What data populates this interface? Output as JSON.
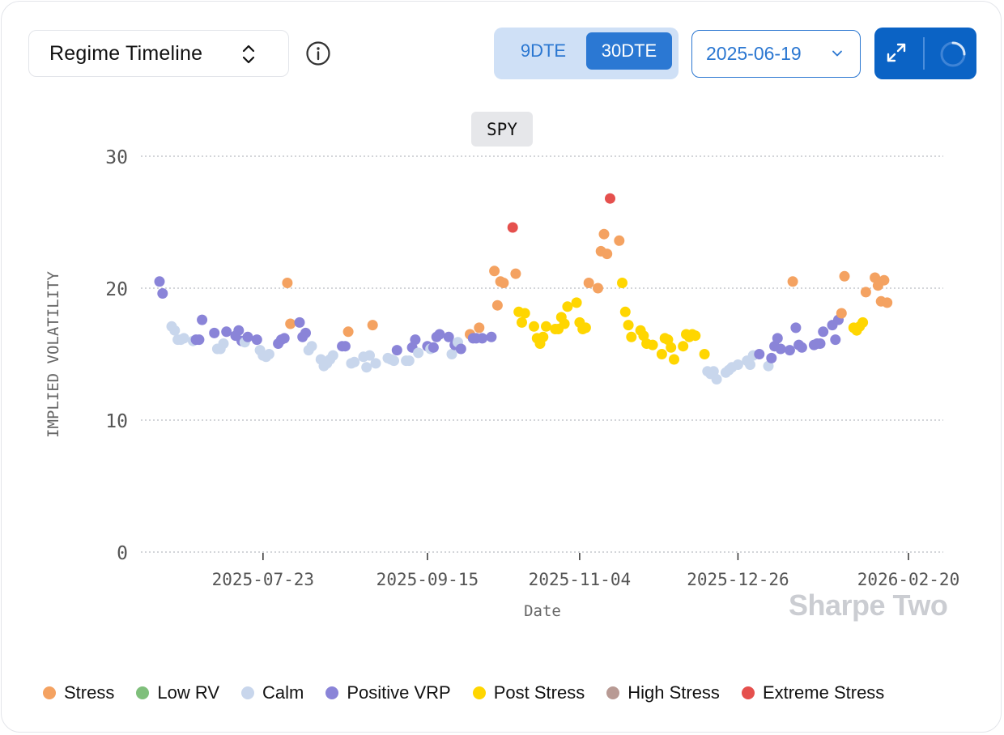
{
  "header": {
    "view_selector": "Regime Timeline",
    "dte_options": [
      "9DTE",
      "30DTE"
    ],
    "dte_selected": "30DTE",
    "date": "2025-06-19"
  },
  "watermark": "Sharpe Two",
  "colors": {
    "Stress": "#f4a261",
    "Low RV": "#7fbf7b",
    "Calm": "#c8d6ec",
    "Positive VRP": "#8a84d8",
    "Post Stress": "#ffd600",
    "High Stress": "#b89a94",
    "Extreme Stress": "#e5504d"
  },
  "legend": [
    "Stress",
    "Low RV",
    "Calm",
    "Positive VRP",
    "Post Stress",
    "High Stress",
    "Extreme Stress"
  ],
  "chart_data": {
    "type": "scatter",
    "title": "SPY",
    "xlabel": "Date",
    "ylabel": "IMPLIED VOLATILITY",
    "ylim": [
      0,
      30
    ],
    "xlim": [
      "2025-06-19",
      "2026-02-20"
    ],
    "yticks": [
      0,
      10,
      20,
      30
    ],
    "xticks": [
      "2025-07-23",
      "2025-09-15",
      "2025-11-04",
      "2025-12-26",
      "2026-02-20"
    ],
    "grid": true,
    "legend_position": "bottom",
    "points": [
      [
        "2025-06-19",
        20.5,
        "Positive VRP"
      ],
      [
        "2025-06-20",
        19.6,
        "Positive VRP"
      ],
      [
        "2025-06-23",
        17.1,
        "Calm"
      ],
      [
        "2025-06-24",
        16.8,
        "Calm"
      ],
      [
        "2025-06-25",
        16.1,
        "Calm"
      ],
      [
        "2025-06-26",
        16.1,
        "Calm"
      ],
      [
        "2025-06-27",
        16.2,
        "Calm"
      ],
      [
        "2025-06-30",
        16.0,
        "Calm"
      ],
      [
        "2025-07-01",
        16.1,
        "Positive VRP"
      ],
      [
        "2025-07-02",
        16.1,
        "Positive VRP"
      ],
      [
        "2025-07-03",
        17.6,
        "Positive VRP"
      ],
      [
        "2025-07-07",
        16.6,
        "Positive VRP"
      ],
      [
        "2025-07-08",
        15.4,
        "Calm"
      ],
      [
        "2025-07-09",
        15.4,
        "Calm"
      ],
      [
        "2025-07-10",
        15.8,
        "Calm"
      ],
      [
        "2025-07-11",
        16.7,
        "Positive VRP"
      ],
      [
        "2025-07-14",
        16.4,
        "Positive VRP"
      ],
      [
        "2025-07-15",
        16.8,
        "Positive VRP"
      ],
      [
        "2025-07-16",
        16.0,
        "Positive VRP"
      ],
      [
        "2025-07-17",
        15.9,
        "Calm"
      ],
      [
        "2025-07-18",
        16.3,
        "Positive VRP"
      ],
      [
        "2025-07-21",
        16.1,
        "Positive VRP"
      ],
      [
        "2025-07-22",
        15.3,
        "Calm"
      ],
      [
        "2025-07-23",
        14.9,
        "Calm"
      ],
      [
        "2025-07-24",
        14.8,
        "Calm"
      ],
      [
        "2025-07-25",
        15.0,
        "Calm"
      ],
      [
        "2025-07-28",
        15.8,
        "Positive VRP"
      ],
      [
        "2025-07-29",
        16.1,
        "Positive VRP"
      ],
      [
        "2025-07-30",
        16.2,
        "Positive VRP"
      ],
      [
        "2025-07-31",
        20.4,
        "Stress"
      ],
      [
        "2025-08-01",
        17.3,
        "Stress"
      ],
      [
        "2025-08-04",
        17.4,
        "Positive VRP"
      ],
      [
        "2025-08-05",
        16.3,
        "Positive VRP"
      ],
      [
        "2025-08-06",
        16.6,
        "Positive VRP"
      ],
      [
        "2025-08-07",
        15.3,
        "Calm"
      ],
      [
        "2025-08-08",
        15.6,
        "Calm"
      ],
      [
        "2025-08-11",
        14.6,
        "Calm"
      ],
      [
        "2025-08-12",
        14.1,
        "Calm"
      ],
      [
        "2025-08-13",
        14.3,
        "Calm"
      ],
      [
        "2025-08-14",
        14.6,
        "Calm"
      ],
      [
        "2025-08-15",
        14.9,
        "Calm"
      ],
      [
        "2025-08-18",
        15.6,
        "Positive VRP"
      ],
      [
        "2025-08-19",
        15.6,
        "Positive VRP"
      ],
      [
        "2025-08-20",
        16.7,
        "Stress"
      ],
      [
        "2025-08-21",
        14.3,
        "Calm"
      ],
      [
        "2025-08-22",
        14.4,
        "Calm"
      ],
      [
        "2025-08-25",
        14.8,
        "Calm"
      ],
      [
        "2025-08-26",
        14.0,
        "Calm"
      ],
      [
        "2025-08-27",
        14.9,
        "Calm"
      ],
      [
        "2025-08-28",
        17.2,
        "Stress"
      ],
      [
        "2025-08-29",
        14.3,
        "Calm"
      ],
      [
        "2025-09-02",
        14.7,
        "Calm"
      ],
      [
        "2025-09-03",
        14.6,
        "Calm"
      ],
      [
        "2025-09-04",
        14.5,
        "Calm"
      ],
      [
        "2025-09-05",
        15.3,
        "Positive VRP"
      ],
      [
        "2025-09-08",
        14.5,
        "Calm"
      ],
      [
        "2025-09-09",
        14.5,
        "Calm"
      ],
      [
        "2025-09-10",
        15.5,
        "Positive VRP"
      ],
      [
        "2025-09-11",
        16.1,
        "Positive VRP"
      ],
      [
        "2025-09-12",
        15.1,
        "Calm"
      ],
      [
        "2025-09-15",
        15.6,
        "Positive VRP"
      ],
      [
        "2025-09-16",
        15.4,
        "Calm"
      ],
      [
        "2025-09-17",
        15.5,
        "Positive VRP"
      ],
      [
        "2025-09-18",
        16.3,
        "Positive VRP"
      ],
      [
        "2025-09-19",
        16.5,
        "Positive VRP"
      ],
      [
        "2025-09-22",
        16.3,
        "Positive VRP"
      ],
      [
        "2025-09-23",
        15.0,
        "Calm"
      ],
      [
        "2025-09-24",
        15.7,
        "Positive VRP"
      ],
      [
        "2025-09-25",
        15.9,
        "Calm"
      ],
      [
        "2025-09-26",
        15.4,
        "Positive VRP"
      ],
      [
        "2025-09-29",
        16.5,
        "Stress"
      ],
      [
        "2025-09-30",
        16.2,
        "Positive VRP"
      ],
      [
        "2025-10-01",
        16.2,
        "Positive VRP"
      ],
      [
        "2025-10-02",
        17.0,
        "Stress"
      ],
      [
        "2025-10-03",
        16.2,
        "Positive VRP"
      ],
      [
        "2025-10-06",
        16.3,
        "Positive VRP"
      ],
      [
        "2025-10-07",
        21.3,
        "Stress"
      ],
      [
        "2025-10-08",
        18.7,
        "Stress"
      ],
      [
        "2025-10-09",
        20.5,
        "Stress"
      ],
      [
        "2025-10-10",
        20.4,
        "Stress"
      ],
      [
        "2025-10-13",
        24.6,
        "Extreme Stress"
      ],
      [
        "2025-10-14",
        21.1,
        "Stress"
      ],
      [
        "2025-10-15",
        18.2,
        "Post Stress"
      ],
      [
        "2025-10-16",
        17.4,
        "Post Stress"
      ],
      [
        "2025-10-17",
        18.1,
        "Post Stress"
      ],
      [
        "2025-10-20",
        17.1,
        "Post Stress"
      ],
      [
        "2025-10-21",
        16.2,
        "Post Stress"
      ],
      [
        "2025-10-22",
        15.8,
        "Post Stress"
      ],
      [
        "2025-10-23",
        16.3,
        "Post Stress"
      ],
      [
        "2025-10-24",
        17.1,
        "Post Stress"
      ],
      [
        "2025-10-27",
        16.9,
        "Post Stress"
      ],
      [
        "2025-10-28",
        16.9,
        "Post Stress"
      ],
      [
        "2025-10-29",
        17.8,
        "Post Stress"
      ],
      [
        "2025-10-30",
        17.3,
        "Post Stress"
      ],
      [
        "2025-10-31",
        18.6,
        "Post Stress"
      ],
      [
        "2025-11-03",
        18.9,
        "Post Stress"
      ],
      [
        "2025-11-04",
        17.4,
        "Post Stress"
      ],
      [
        "2025-11-05",
        16.9,
        "Post Stress"
      ],
      [
        "2025-11-06",
        17.0,
        "Post Stress"
      ],
      [
        "2025-11-07",
        20.4,
        "Stress"
      ],
      [
        "2025-11-10",
        20.0,
        "Stress"
      ],
      [
        "2025-11-11",
        22.8,
        "Stress"
      ],
      [
        "2025-11-12",
        24.1,
        "Stress"
      ],
      [
        "2025-11-13",
        22.6,
        "Stress"
      ],
      [
        "2025-11-14",
        26.8,
        "Extreme Stress"
      ],
      [
        "2025-11-17",
        23.6,
        "Stress"
      ],
      [
        "2025-11-18",
        20.4,
        "Post Stress"
      ],
      [
        "2025-11-19",
        18.2,
        "Post Stress"
      ],
      [
        "2025-11-20",
        17.2,
        "Post Stress"
      ],
      [
        "2025-11-21",
        16.3,
        "Post Stress"
      ],
      [
        "2025-11-24",
        16.8,
        "Post Stress"
      ],
      [
        "2025-11-25",
        16.4,
        "Post Stress"
      ],
      [
        "2025-11-26",
        15.8,
        "Post Stress"
      ],
      [
        "2025-11-28",
        15.7,
        "Post Stress"
      ],
      [
        "2025-12-01",
        15.0,
        "Post Stress"
      ],
      [
        "2025-12-02",
        16.2,
        "Post Stress"
      ],
      [
        "2025-12-03",
        16.1,
        "Post Stress"
      ],
      [
        "2025-12-04",
        15.5,
        "Post Stress"
      ],
      [
        "2025-12-05",
        14.6,
        "Post Stress"
      ],
      [
        "2025-12-08",
        15.6,
        "Post Stress"
      ],
      [
        "2025-12-09",
        16.5,
        "Post Stress"
      ],
      [
        "2025-12-10",
        16.3,
        "Post Stress"
      ],
      [
        "2025-12-11",
        16.5,
        "Post Stress"
      ],
      [
        "2025-12-12",
        16.4,
        "Post Stress"
      ],
      [
        "2025-12-15",
        15.0,
        "Post Stress"
      ],
      [
        "2025-12-16",
        13.7,
        "Calm"
      ],
      [
        "2025-12-17",
        13.5,
        "Calm"
      ],
      [
        "2025-12-18",
        13.7,
        "Calm"
      ],
      [
        "2025-12-19",
        13.1,
        "Calm"
      ],
      [
        "2025-12-22",
        13.6,
        "Calm"
      ],
      [
        "2025-12-23",
        13.8,
        "Calm"
      ],
      [
        "2025-12-24",
        14.0,
        "Calm"
      ],
      [
        "2025-12-26",
        14.2,
        "Calm"
      ],
      [
        "2025-12-29",
        14.5,
        "Calm"
      ],
      [
        "2025-12-30",
        14.2,
        "Calm"
      ],
      [
        "2025-12-31",
        14.9,
        "Calm"
      ],
      [
        "2026-01-02",
        15.0,
        "Positive VRP"
      ],
      [
        "2026-01-05",
        14.1,
        "Calm"
      ],
      [
        "2026-01-06",
        14.7,
        "Positive VRP"
      ],
      [
        "2026-01-07",
        15.6,
        "Positive VRP"
      ],
      [
        "2026-01-08",
        16.2,
        "Positive VRP"
      ],
      [
        "2026-01-09",
        15.4,
        "Positive VRP"
      ],
      [
        "2026-01-12",
        15.3,
        "Positive VRP"
      ],
      [
        "2026-01-13",
        20.5,
        "Stress"
      ],
      [
        "2026-01-14",
        17.0,
        "Positive VRP"
      ],
      [
        "2026-01-15",
        15.7,
        "Positive VRP"
      ],
      [
        "2026-01-16",
        15.5,
        "Positive VRP"
      ],
      [
        "2026-01-20",
        15.7,
        "Positive VRP"
      ],
      [
        "2026-01-21",
        15.8,
        "Positive VRP"
      ],
      [
        "2026-01-22",
        15.8,
        "Positive VRP"
      ],
      [
        "2026-01-23",
        16.7,
        "Positive VRP"
      ],
      [
        "2026-01-26",
        17.2,
        "Positive VRP"
      ],
      [
        "2026-01-27",
        16.1,
        "Positive VRP"
      ],
      [
        "2026-01-28",
        17.6,
        "Positive VRP"
      ],
      [
        "2026-01-29",
        18.1,
        "Stress"
      ],
      [
        "2026-01-30",
        20.9,
        "Stress"
      ],
      [
        "2026-02-02",
        17.0,
        "Post Stress"
      ],
      [
        "2026-02-03",
        16.8,
        "Post Stress"
      ],
      [
        "2026-02-04",
        17.1,
        "Post Stress"
      ],
      [
        "2026-02-05",
        17.4,
        "Post Stress"
      ],
      [
        "2026-02-06",
        19.7,
        "Stress"
      ],
      [
        "2026-02-09",
        20.8,
        "Stress"
      ],
      [
        "2026-02-10",
        20.2,
        "Stress"
      ],
      [
        "2026-02-11",
        19.0,
        "Stress"
      ],
      [
        "2026-02-12",
        20.6,
        "Stress"
      ],
      [
        "2026-02-13",
        18.9,
        "Stress"
      ]
    ]
  }
}
